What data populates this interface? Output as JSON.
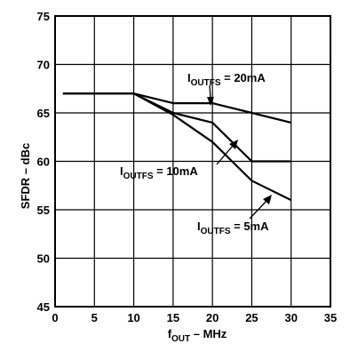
{
  "chart_data": {
    "type": "line",
    "xlabel": {
      "main": "f",
      "sub": "OUT",
      "rest": " – MHz"
    },
    "ylabel": "SFDR – dBc",
    "xlim": [
      0,
      35
    ],
    "ylim": [
      45,
      75
    ],
    "xticks": [
      0,
      5,
      10,
      15,
      20,
      25,
      30,
      35
    ],
    "yticks": [
      45,
      50,
      55,
      60,
      65,
      70,
      75
    ],
    "grid": true,
    "series": [
      {
        "name": "IOUTFS = 20mA",
        "x": [
          1,
          10,
          15,
          20,
          25,
          30
        ],
        "y": [
          67,
          67,
          66,
          66,
          65,
          64
        ]
      },
      {
        "name": "IOUTFS = 10mA",
        "x": [
          1,
          10,
          15,
          20,
          25,
          30
        ],
        "y": [
          67,
          67,
          65,
          64,
          60,
          60
        ]
      },
      {
        "name": "IOUTFS = 5mA",
        "x": [
          1,
          10,
          15,
          20,
          25,
          30
        ],
        "y": [
          67,
          67,
          64.8,
          62,
          58,
          56
        ]
      }
    ],
    "annotations": [
      {
        "main": "I",
        "sub": "OUTFS",
        "rest": " = 20mA"
      },
      {
        "main": "I",
        "sub": "OUTFS",
        "rest": " = 10mA"
      },
      {
        "main": "I",
        "sub": "OUTFS",
        "rest": " = 5mA"
      }
    ]
  }
}
